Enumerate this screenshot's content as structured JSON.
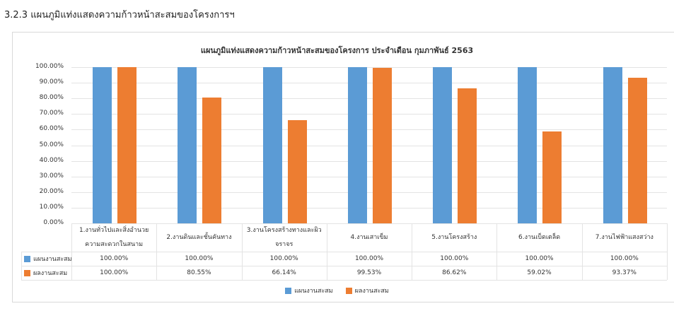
{
  "heading": "3.2.3  แผนภูมิแท่งแสดงความก้าวหน้าสะสมของโครงการฯ",
  "chart_data": {
    "type": "bar",
    "title": "แผนภูมิแท่งแสดงความก้าวหน้าสะสมของโครงการ ประจำเดือน กุมภาพันธ์ 2563",
    "categories": [
      "1.งานทั่วไปและสิ่งอำนวยความสะดวกในสนาม",
      "2.งานดินและชั้นคันทาง",
      "3.งานโครงสร้างทางและผิวจราจร",
      "4.งานเสาเข็ม",
      "5.งานโครงสร้าง",
      "6.งานเบ็ดเตล็ด",
      "7.งานไฟฟ้าแสงสว่าง"
    ],
    "series": [
      {
        "name": "แผนงานสะสม",
        "color": "#5b9bd5",
        "values": [
          100,
          100,
          100,
          100,
          100,
          100,
          100
        ],
        "labels": [
          "100.00%",
          "100.00%",
          "100.00%",
          "100.00%",
          "100.00%",
          "100.00%",
          "100.00%"
        ]
      },
      {
        "name": "ผลงานสะสม",
        "color": "#ed7d31",
        "values": [
          100,
          80.55,
          66.14,
          99.53,
          86.62,
          59.02,
          93.37
        ],
        "labels": [
          "100.00%",
          "80.55%",
          "66.14%",
          "99.53%",
          "86.62%",
          "59.02%",
          "93.37%"
        ]
      }
    ],
    "yticks": [
      "0.00%",
      "10.00%",
      "20.00%",
      "30.00%",
      "40.00%",
      "50.00%",
      "60.00%",
      "70.00%",
      "80.00%",
      "90.00%",
      "100.00%"
    ],
    "ylim": [
      0,
      100
    ],
    "grid": true,
    "legend": "bottom"
  }
}
